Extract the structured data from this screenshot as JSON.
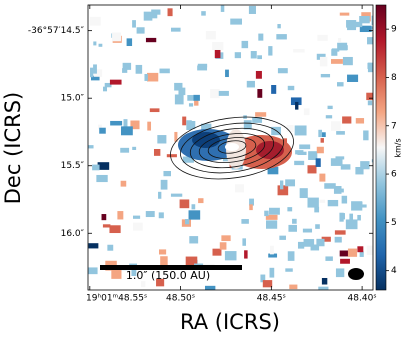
{
  "chart_data": {
    "type": "image",
    "xlabel": "RA (ICRS)",
    "ylabel": "Dec (ICRS)",
    "xlim": [
      48.551,
      48.394
    ],
    "xticks": [
      {
        "value": 48.55,
        "label": "19ʰ01ᵐ48.55ˢ"
      },
      {
        "value": 48.5,
        "label": "48.50ˢ"
      },
      {
        "value": 48.45,
        "label": "48.45ˢ"
      },
      {
        "value": 48.4,
        "label": "48.40ˢ"
      }
    ],
    "ylim": [
      16.42,
      14.31
    ],
    "yticks": [
      {
        "value": 14.5,
        "label": "-36°57′14.5″"
      },
      {
        "value": 15.0,
        "label": "15.0″"
      },
      {
        "value": 15.5,
        "label": "15.5″"
      },
      {
        "value": 16.0,
        "label": "16.0″"
      }
    ],
    "colorbar": {
      "label": "km/s",
      "clim": [
        3.6,
        9.5
      ],
      "ticks": [
        4,
        5,
        6,
        7,
        8,
        9
      ],
      "colormap": [
        "#053061",
        "#2166ac",
        "#4393c3",
        "#92c5de",
        "#f7f7f7",
        "#f4a582",
        "#d6604d",
        "#b2182b",
        "#67001f"
      ]
    },
    "scalebar_label": "1.0″ (150.0 AU)"
  }
}
